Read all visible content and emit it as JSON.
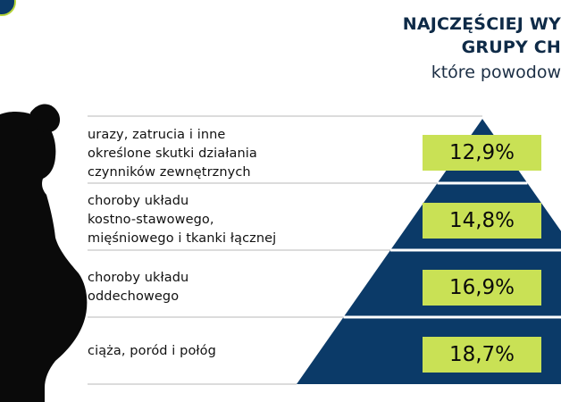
{
  "header": {
    "title_line1": "NAJCZĘŚCIEJ WY",
    "title_line2": "GRUPY CH",
    "subtitle": "które powodow"
  },
  "chart_data": {
    "type": "bar",
    "style": "pyramid",
    "categories": [
      "urazy, zatrucia i inne określone skutki działania czynników zewnętrznych",
      "choroby układu kostno-stawowego, mięśniowego i tkanki łącznej",
      "choroby układu oddechowego",
      "ciąża, poród i połóg"
    ],
    "labels": [
      [
        "urazy, zatrucia i inne",
        "określone skutki działania",
        "czynników zewnętrznych"
      ],
      [
        "choroby układu",
        "kostno-stawowego,",
        "mięśniowego i tkanki łącznej"
      ],
      [
        "choroby układu",
        "oddechowego"
      ],
      [
        "ciąża, poród i połóg"
      ]
    ],
    "values": [
      12.9,
      14.8,
      16.9,
      18.7
    ],
    "value_labels": [
      "12,9%",
      "14,8%",
      "16,9%",
      "18,7%"
    ],
    "unit": "%",
    "colors": {
      "pyramid": "#0b3a68",
      "value_box": "#c9e155",
      "separator": "#c7c7c7",
      "silhouette": "#0a0a0a"
    }
  }
}
